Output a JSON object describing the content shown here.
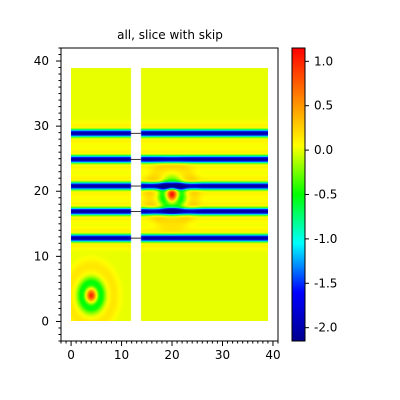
{
  "chart_data": {
    "type": "heatmap",
    "title": "all, slice with skip",
    "xlabel": "",
    "ylabel": "",
    "xlim": [
      -2,
      41
    ],
    "ylim": [
      -3,
      42
    ],
    "x_ticks": [
      0,
      10,
      20,
      30,
      40
    ],
    "y_ticks": [
      0,
      10,
      20,
      30,
      40
    ],
    "x_tick_labels": [
      "0",
      "10",
      "20",
      "30",
      "40"
    ],
    "y_tick_labels": [
      "0",
      "10",
      "20",
      "30",
      "40"
    ],
    "data_extent": {
      "x": [
        0,
        39
      ],
      "y": [
        0,
        39
      ]
    },
    "skipped_columns": [
      12,
      13
    ],
    "stripe_rows_y": [
      12.8,
      16.9,
      20.8,
      24.9,
      28.9
    ],
    "stripe_min_value": -2.1,
    "blob_peaks": [
      {
        "x": 4,
        "y": 4,
        "peak": 1.0
      },
      {
        "x": 20,
        "y": 19.5,
        "peak": 1.0
      }
    ],
    "background_value": 0.0,
    "colorbar": {
      "min": -2.15,
      "max": 1.15,
      "ticks": [
        1.0,
        0.5,
        0.0,
        -0.5,
        -1.0,
        -1.5,
        -2.0
      ],
      "tick_labels": [
        "1.0",
        "0.5",
        "0.0",
        "-0.5",
        "-1.0",
        "-1.5",
        "-2.0"
      ],
      "colormap": [
        "#00008f",
        "#0000ff",
        "#00ffff",
        "#00ff00",
        "#ffff00",
        "#ff8000",
        "#ff0000"
      ]
    },
    "grid": false
  }
}
